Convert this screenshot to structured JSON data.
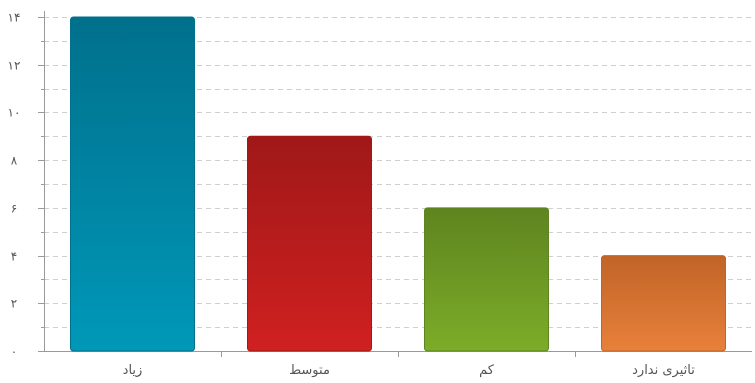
{
  "chart_data": {
    "type": "bar",
    "categories": [
      "زیاد",
      "متوسط",
      "کم",
      "تاثیری ندارد"
    ],
    "values": [
      14,
      9,
      6,
      4
    ],
    "ylim": [
      0,
      14
    ],
    "yticks": [
      0,
      2,
      4,
      6,
      8,
      10,
      12,
      14
    ],
    "ytick_labels": [
      "۰",
      "۲",
      "۴",
      "۶",
      "۸",
      "۱۰",
      "۱۲",
      "۱۴"
    ],
    "grid": true,
    "colors": [
      {
        "top": "#00708c",
        "bottom": "#0098b8"
      },
      {
        "top": "#a01818",
        "bottom": "#d02020"
      },
      {
        "top": "#5e8420",
        "bottom": "#7cac28"
      },
      {
        "top": "#c06428",
        "bottom": "#e8803a"
      }
    ]
  }
}
